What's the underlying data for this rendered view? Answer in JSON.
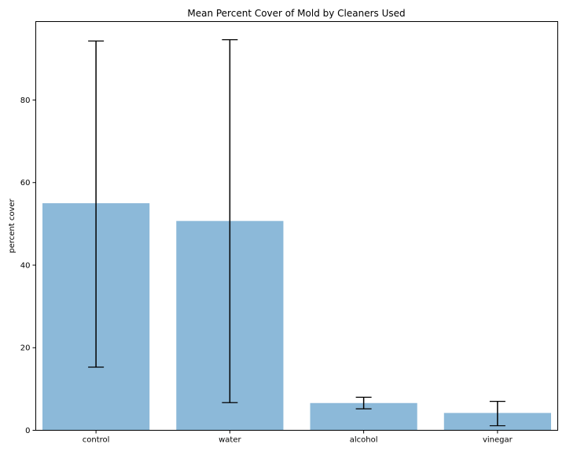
{
  "chart_data": {
    "type": "bar",
    "title": "Mean Percent Cover of Mold by Cleaners Used",
    "xlabel": "",
    "ylabel": "percent cover",
    "categories": [
      "control",
      "water",
      "alcohol",
      "vinegar"
    ],
    "values": [
      55.0,
      50.7,
      6.6,
      4.2
    ],
    "error": [
      {
        "low": 15.3,
        "high": 94.3
      },
      {
        "low": 6.7,
        "high": 94.6
      },
      {
        "low": 5.2,
        "high": 8.0
      },
      {
        "low": 1.1,
        "high": 7.0
      }
    ],
    "ylim": [
      0,
      99
    ],
    "yticks": [
      0,
      20,
      40,
      60,
      80
    ],
    "bar_color": "#8cb9d9",
    "error_color": "#000000",
    "grid": false,
    "legend": "none"
  }
}
